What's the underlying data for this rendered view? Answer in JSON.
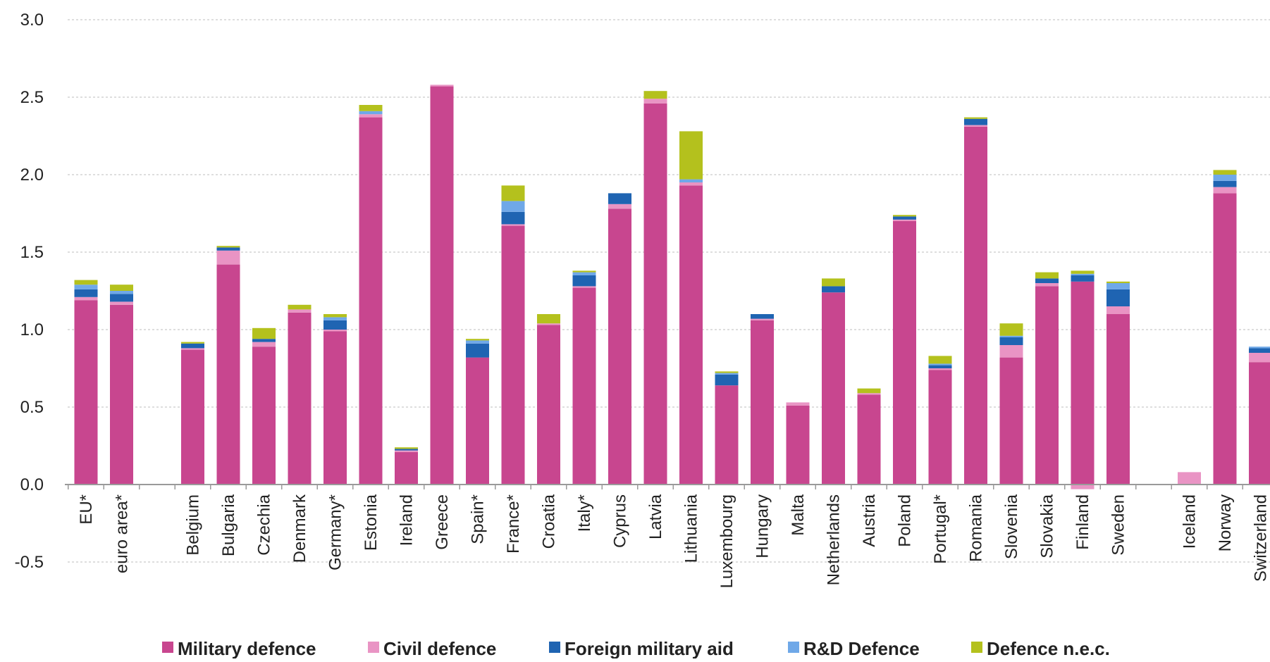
{
  "chart_data": {
    "type": "bar",
    "stacked": true,
    "title": "",
    "xlabel": "",
    "ylabel": "",
    "ylim": [
      -0.5,
      3.0
    ],
    "yticks": [
      "3.0",
      "2.5",
      "2.0",
      "1.5",
      "1.0",
      "0.5",
      "0.0",
      "-0.5"
    ],
    "grid": true,
    "legend_position": "bottom",
    "categories": [
      "EU*",
      "euro area*",
      "",
      "Belgium",
      "Bulgaria",
      "Czechia",
      "Denmark",
      "Germany*",
      "Estonia",
      "Ireland",
      "Greece",
      "Spain*",
      "France*",
      "Croatia",
      "Italy*",
      "Cyprus",
      "Latvia",
      "Lithuania",
      "Luxembourg",
      "Hungary",
      "Malta",
      "Netherlands",
      "Austria",
      "Poland",
      "Portugal*",
      "Romania",
      "Slovenia",
      "Slovakia",
      "Finland",
      "Sweden",
      "",
      "Iceland",
      "Norway",
      "Switzerland"
    ],
    "series": [
      {
        "name": "Military defence",
        "color": "#c8468f",
        "values": [
          1.19,
          1.16,
          null,
          0.87,
          1.42,
          0.89,
          1.11,
          0.99,
          2.37,
          0.21,
          2.57,
          0.82,
          1.67,
          1.03,
          1.27,
          1.78,
          2.46,
          1.93,
          0.64,
          1.06,
          0.51,
          1.24,
          0.58,
          1.7,
          0.74,
          2.31,
          0.82,
          1.28,
          1.31,
          1.1,
          null,
          0.0,
          1.88,
          0.79
        ]
      },
      {
        "name": "Civil defence",
        "color": "#e994c4",
        "values": [
          0.02,
          0.02,
          null,
          0.01,
          0.09,
          0.03,
          0.02,
          0.01,
          0.02,
          0.01,
          0.01,
          0.0,
          0.01,
          0.01,
          0.01,
          0.03,
          0.03,
          0.02,
          0.0,
          0.01,
          0.02,
          0.0,
          0.01,
          0.01,
          0.01,
          0.01,
          0.08,
          0.02,
          -0.03,
          0.05,
          null,
          0.08,
          0.04,
          0.06
        ]
      },
      {
        "name": "Foreign military aid",
        "color": "#1f64b2",
        "values": [
          0.05,
          0.05,
          null,
          0.03,
          0.02,
          0.02,
          0.0,
          0.06,
          0.0,
          0.01,
          0.0,
          0.09,
          0.08,
          0.0,
          0.07,
          0.07,
          0.0,
          0.0,
          0.07,
          0.03,
          0.0,
          0.04,
          0.0,
          0.02,
          0.02,
          0.04,
          0.05,
          0.03,
          0.04,
          0.11,
          null,
          0.0,
          0.04,
          0.03
        ]
      },
      {
        "name": "R&D Defence",
        "color": "#6fa8e8",
        "values": [
          0.03,
          0.02,
          null,
          0.0,
          0.0,
          0.0,
          0.0,
          0.02,
          0.02,
          0.0,
          0.0,
          0.02,
          0.07,
          0.0,
          0.02,
          0.0,
          0.0,
          0.02,
          0.01,
          0.0,
          0.0,
          0.0,
          0.0,
          0.0,
          0.01,
          0.0,
          0.01,
          0.0,
          0.01,
          0.04,
          null,
          0.0,
          0.04,
          0.01
        ]
      },
      {
        "name": "Defence n.e.c.",
        "color": "#b4c11d",
        "values": [
          0.03,
          0.04,
          null,
          0.01,
          0.01,
          0.07,
          0.03,
          0.02,
          0.04,
          0.01,
          0.0,
          0.01,
          0.1,
          0.06,
          0.01,
          0.0,
          0.05,
          0.31,
          0.01,
          0.0,
          0.0,
          0.05,
          0.03,
          0.01,
          0.05,
          0.01,
          0.08,
          0.04,
          0.02,
          0.01,
          null,
          0.0,
          0.03,
          0.0
        ]
      }
    ]
  }
}
